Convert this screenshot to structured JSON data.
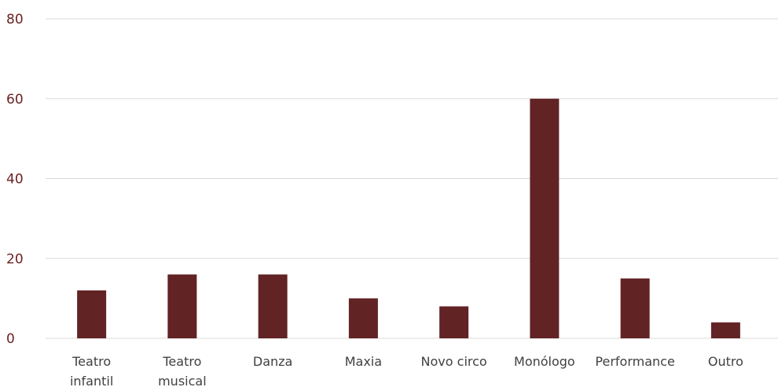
{
  "chart_data": {
    "type": "bar",
    "title": "",
    "xlabel": "",
    "ylabel": "",
    "categories": [
      [
        "Teatro",
        "infantil"
      ],
      [
        "Teatro",
        "musical"
      ],
      [
        "Danza"
      ],
      [
        "Maxia"
      ],
      [
        "Novo circo"
      ],
      [
        "Monólogo"
      ],
      [
        "Performance"
      ],
      [
        "Outro"
      ]
    ],
    "values": [
      12,
      16,
      16,
      10,
      8,
      60,
      15,
      4
    ],
    "ylim": [
      0,
      80
    ],
    "yticks": [
      0,
      20,
      40,
      60,
      80
    ],
    "grid": true,
    "legend": "none",
    "colors": {
      "bar": "#622324",
      "grid": "#d9d9d9",
      "y_tick_text": "#6b2222",
      "x_tick_text": "#404040"
    }
  }
}
